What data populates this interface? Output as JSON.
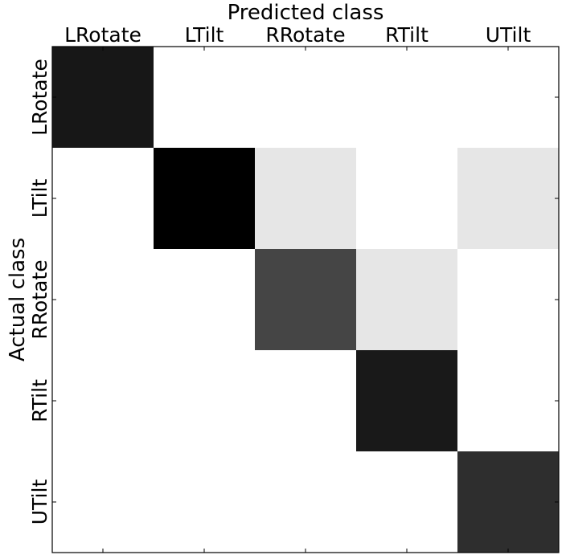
{
  "chart_data": {
    "type": "heatmap",
    "title": "",
    "xlabel": "Predicted class",
    "ylabel": "Actual class",
    "x_categories": [
      "LRotate",
      "LTilt",
      "RRotate",
      "RTilt",
      "UTilt"
    ],
    "y_categories": [
      "LRotate",
      "LTilt",
      "RRotate",
      "RTilt",
      "UTilt"
    ],
    "colormap": "gray_r",
    "vmin": 0,
    "vmax": 1,
    "values": [
      [
        0.91,
        0.0,
        0.0,
        0.0,
        0.0
      ],
      [
        0.0,
        1.0,
        0.1,
        0.0,
        0.1
      ],
      [
        0.0,
        0.0,
        0.73,
        0.1,
        0.0
      ],
      [
        0.0,
        0.0,
        0.0,
        0.9,
        0.0
      ],
      [
        0.0,
        0.0,
        0.0,
        0.0,
        0.82
      ]
    ],
    "x_axis_position": "top",
    "grid": false,
    "legend": false
  }
}
